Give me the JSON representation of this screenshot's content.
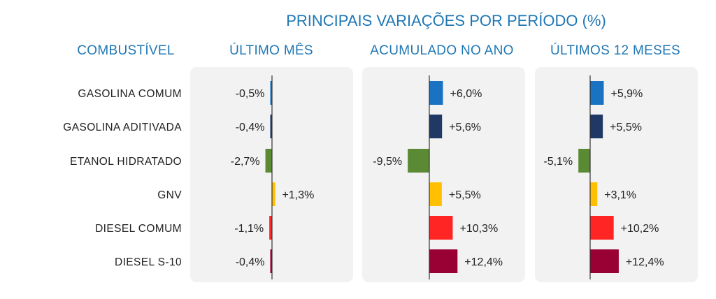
{
  "chart_data": {
    "type": "bar",
    "orientation": "horizontal",
    "title": "PRINCIPAIS VARIAÇÕES POR PERÍODO (%)",
    "category_header": "COMBUSTÍVEL",
    "categories": [
      "GASOLINA COMUM",
      "GASOLINA ADITIVADA",
      "ETANOL HIDRATADO",
      "GNV",
      "DIESEL COMUM",
      "DIESEL  S-10"
    ],
    "bar_colors": [
      "#1a72c2",
      "#1f3864",
      "#5b8a35",
      "#ffc000",
      "#ff2525",
      "#990033"
    ],
    "series": [
      {
        "name": "ÚLTIMO MÊS",
        "values": [
          -0.5,
          -0.4,
          -2.7,
          1.3,
          -1.1,
          -0.4
        ],
        "labels": [
          "-0,5%",
          "-0,4%",
          "-2,7%",
          "+1,3%",
          "-1,1%",
          "-0,4%"
        ]
      },
      {
        "name": "ACUMULADO NO ANO",
        "values": [
          6.0,
          5.6,
          -9.5,
          5.5,
          10.3,
          12.4
        ],
        "labels": [
          "+6,0%",
          "+5,6%",
          "-9,5%",
          "+5,5%",
          "+10,3%",
          "+12,4%"
        ]
      },
      {
        "name": "ÚLTIMOS 12 MESES",
        "values": [
          5.9,
          5.5,
          -5.1,
          3.1,
          10.2,
          12.4
        ],
        "labels": [
          "+5,9%",
          "+5,5%",
          "-5,1%",
          "+3,1%",
          "+10,2%",
          "+12,4%"
        ]
      }
    ],
    "grid": false,
    "legend": "none"
  }
}
